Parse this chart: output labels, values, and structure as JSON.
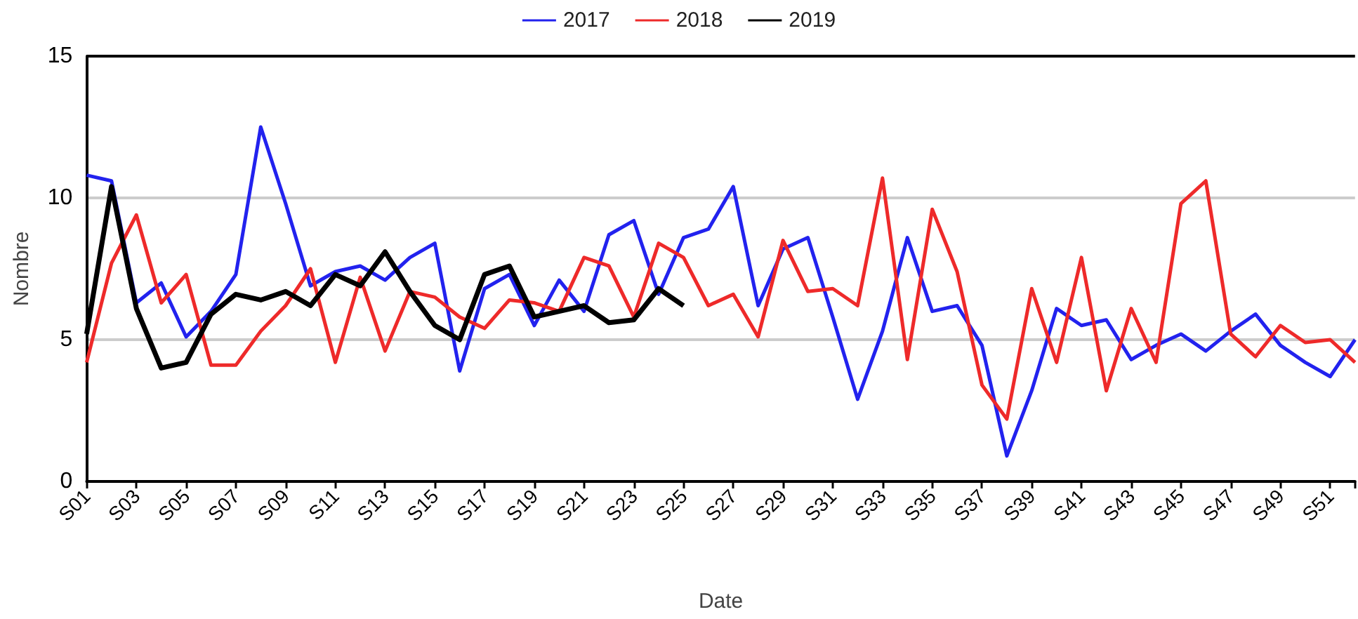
{
  "chart_data": {
    "type": "line",
    "xlabel": "Date",
    "ylabel": "Nombre",
    "categories": [
      "S01",
      null,
      "S03",
      null,
      "S05",
      null,
      "S07",
      null,
      "S09",
      null,
      "S11",
      null,
      "S13",
      null,
      "S15",
      null,
      "S17",
      null,
      "S19",
      null,
      "S21",
      null,
      "S23",
      null,
      "S25",
      null,
      "S27",
      null,
      "S29",
      null,
      "S31",
      null,
      "S33",
      null,
      "S35",
      null,
      "S37",
      null,
      "S39",
      null,
      "S41",
      null,
      "S43",
      null,
      "S45",
      null,
      "S47",
      null,
      "S49",
      null,
      "S51",
      null
    ],
    "series": [
      {
        "name": "2017",
        "color": "#2222ee",
        "values": [
          10.8,
          10.6,
          6.3,
          7.0,
          5.1,
          6.0,
          7.3,
          12.5,
          9.8,
          6.9,
          7.4,
          7.6,
          7.1,
          7.9,
          8.4,
          3.9,
          6.8,
          7.3,
          5.5,
          7.1,
          6.0,
          8.7,
          9.2,
          6.6,
          8.6,
          8.9,
          10.4,
          6.2,
          8.2,
          8.6,
          5.8,
          2.9,
          5.3,
          8.6,
          6.0,
          6.2,
          4.8,
          0.9,
          3.2,
          6.1,
          5.5,
          5.7,
          4.3,
          4.8,
          5.2,
          4.6,
          5.3,
          5.9,
          4.8,
          4.2,
          3.7,
          5.0
        ]
      },
      {
        "name": "2018",
        "color": "#ee2a2a",
        "values": [
          4.2,
          7.7,
          9.4,
          6.3,
          7.3,
          4.1,
          4.1,
          5.3,
          6.2,
          7.5,
          4.2,
          7.2,
          4.6,
          6.7,
          6.5,
          5.8,
          5.4,
          6.4,
          6.3,
          6.0,
          7.9,
          7.6,
          5.8,
          8.4,
          7.9,
          6.2,
          6.6,
          5.1,
          8.5,
          6.7,
          6.8,
          6.2,
          10.7,
          4.3,
          9.6,
          7.4,
          3.4,
          2.2,
          6.8,
          4.2,
          7.9,
          3.2,
          6.1,
          4.2,
          9.8,
          10.6,
          5.2,
          4.4,
          5.5,
          4.9,
          5.0,
          4.2
        ]
      },
      {
        "name": "2019",
        "color": "#000000",
        "values": [
          5.2,
          10.4,
          6.1,
          4.0,
          4.2,
          5.9,
          6.6,
          6.4,
          6.7,
          6.2,
          7.3,
          6.9,
          8.1,
          6.7,
          5.5,
          5.0,
          7.3,
          7.6,
          5.8,
          6.0,
          6.2,
          5.6,
          5.7,
          6.8,
          6.2,
          null,
          null,
          null,
          null,
          null,
          null,
          null,
          null,
          null,
          null,
          null,
          null,
          null,
          null,
          null,
          null,
          null,
          null,
          null,
          null,
          null,
          null,
          null,
          null,
          null,
          null,
          null
        ]
      }
    ],
    "ylim": [
      0,
      15
    ],
    "yticks": [
      0,
      5,
      10,
      15
    ],
    "grid": "y",
    "legend": "top",
    "marker": "none"
  }
}
